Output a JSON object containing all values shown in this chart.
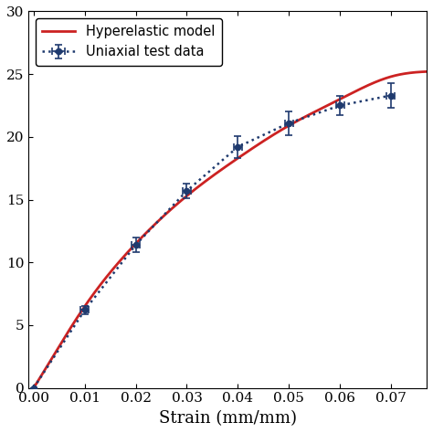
{
  "title": "",
  "xlabel": "Strain (mm/mm)",
  "ylabel": "",
  "xlim": [
    -0.001,
    0.077
  ],
  "ylim": [
    0,
    30
  ],
  "yticks": [
    0,
    5,
    10,
    15,
    20,
    25,
    30
  ],
  "xticks": [
    0.0,
    0.01,
    0.02,
    0.03,
    0.04,
    0.05,
    0.06,
    0.07
  ],
  "test_x": [
    0.0,
    0.01,
    0.02,
    0.03,
    0.04,
    0.05,
    0.06,
    0.07
  ],
  "test_y": [
    0.0,
    6.2,
    11.4,
    15.7,
    19.2,
    21.1,
    22.5,
    23.3
  ],
  "test_yerr": [
    0.0,
    0.35,
    0.55,
    0.6,
    0.85,
    0.95,
    0.75,
    0.95
  ],
  "test_xerr": [
    0.0,
    0.0008,
    0.0008,
    0.0008,
    0.0008,
    0.0008,
    0.0008,
    0.0008
  ],
  "test_color": "#1f3a6e",
  "test_label": "Uniaxial test data",
  "model_color": "#cc2222",
  "model_label": "Hyperelastic model",
  "model_a": 127.0,
  "model_b": 0.5,
  "background_color": "#ffffff",
  "legend_fontsize": 10.5,
  "axis_fontsize": 13,
  "tick_fontsize": 11
}
